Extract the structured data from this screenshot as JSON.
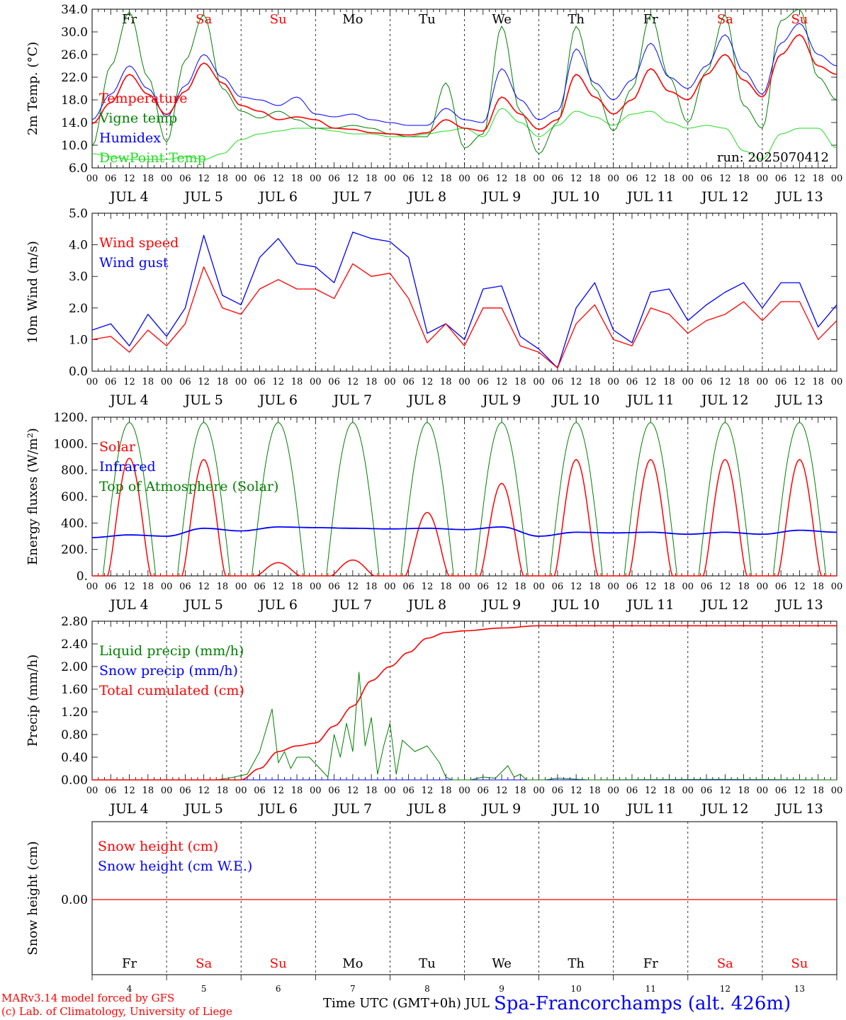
{
  "footer": {
    "credit_model": "MARv3.14 model forced by GFS",
    "credit_lab": "(c) Lab. of Climatology, University of Liege",
    "time_label": "Time UTC (GMT+0h) JUL",
    "station": "Spa-Francorchamps (alt. 426m)"
  },
  "colors": {
    "red": "#ff0000",
    "green": "#008000",
    "blue": "#0000ff",
    "lime": "#22dd22",
    "grid": "#000000"
  },
  "days": {
    "weekday_names": [
      "Fr",
      "Sa",
      "Su",
      "Mo",
      "Tu",
      "We",
      "Th",
      "Fr",
      "Sa",
      "Su"
    ],
    "weekend": [
      false,
      true,
      true,
      false,
      false,
      false,
      false,
      false,
      true,
      true
    ],
    "month_labels": [
      "JUL  4",
      "JUL  5",
      "JUL  6",
      "JUL  7",
      "JUL  8",
      "JUL  9",
      "JUL 10",
      "JUL 11",
      "JUL 12",
      "JUL 13"
    ],
    "day_numbers": [
      "4",
      "5",
      "6",
      "7",
      "8",
      "9",
      "10",
      "11",
      "12",
      "13"
    ],
    "hour_ticks": [
      "00",
      "06",
      "12",
      "18"
    ]
  },
  "chart_data": [
    {
      "type": "line",
      "ylabel": "2m Temp. (°C)",
      "ylim": [
        6.0,
        34.0
      ],
      "yticks": [
        "6.0",
        "10.0",
        "14.0",
        "18.0",
        "22.0",
        "26.0",
        "30.0",
        "34.0"
      ],
      "annotation": "run: 2025070412",
      "x_hours": [
        0,
        6,
        12,
        18,
        24,
        30,
        36,
        42,
        48,
        54,
        60,
        66,
        72,
        78,
        84,
        90,
        96,
        102,
        108,
        114,
        120,
        126,
        132,
        138,
        144,
        150,
        156,
        162,
        168,
        174,
        180,
        186,
        192,
        198,
        204,
        210,
        216,
        222,
        228,
        234,
        240
      ],
      "series": [
        {
          "name": "Temperature",
          "color": "#ff0000",
          "values": [
            13.8,
            17.5,
            22.5,
            19,
            15.4,
            19.5,
            24.5,
            21,
            17,
            16,
            14.5,
            15,
            14.5,
            13,
            12.8,
            12.2,
            12,
            11.8,
            12.2,
            14.5,
            13,
            12.5,
            18.5,
            15.5,
            12.8,
            14.5,
            22.5,
            18.5,
            15.5,
            18,
            23.5,
            19.5,
            18,
            22.5,
            26,
            21.5,
            18.5,
            26,
            29.5,
            24,
            22.5
          ]
        },
        {
          "name": "Vigne temp",
          "color": "#008000",
          "values": [
            9.8,
            24,
            33.5,
            22,
            10.5,
            25,
            33,
            20,
            16,
            14.8,
            16,
            14.5,
            13,
            13,
            13.5,
            13,
            12,
            11.5,
            11.5,
            21,
            9.5,
            12,
            31,
            16,
            8.5,
            14,
            31,
            20,
            12.5,
            20,
            33,
            22,
            14,
            23,
            33,
            17,
            13,
            32,
            34,
            22,
            18
          ]
        },
        {
          "name": "Humidex",
          "color": "#0000ff",
          "values": [
            14.5,
            19,
            24,
            20,
            15,
            20.5,
            26,
            22,
            18.5,
            18,
            17,
            18.5,
            15.5,
            15,
            15.5,
            14.5,
            14,
            13.5,
            13.5,
            16.5,
            14.5,
            14,
            23.5,
            18,
            14.5,
            16,
            27,
            21,
            18,
            21.5,
            28,
            22,
            20,
            24,
            29.5,
            23,
            19,
            28,
            31.5,
            26,
            24
          ]
        },
        {
          "name": "DewPoint Temp",
          "color": "#22dd22",
          "values": [
            8.5,
            8,
            7.5,
            7.5,
            7.5,
            8,
            7.5,
            8.5,
            11,
            12,
            12.5,
            13,
            13,
            12.5,
            12,
            12,
            11.5,
            11.5,
            12,
            12.5,
            13,
            11.5,
            16.5,
            14,
            11.5,
            13.5,
            16,
            15,
            13.5,
            15.5,
            16,
            14,
            13,
            13.5,
            13,
            9,
            7.5,
            12,
            13,
            13,
            9.5
          ]
        }
      ]
    },
    {
      "type": "line",
      "ylabel": "10m Wind (m/s)",
      "ylim": [
        0.0,
        5.0
      ],
      "yticks": [
        "0.0",
        "1.0",
        "2.0",
        "3.0",
        "4.0",
        "5.0"
      ],
      "x_hours": [
        0,
        6,
        12,
        18,
        24,
        30,
        36,
        42,
        48,
        54,
        60,
        66,
        72,
        78,
        84,
        90,
        96,
        102,
        108,
        114,
        120,
        126,
        132,
        138,
        144,
        150,
        156,
        162,
        168,
        174,
        180,
        186,
        192,
        198,
        204,
        210,
        216,
        222,
        228,
        234,
        240
      ],
      "series": [
        {
          "name": "Wind speed",
          "color": "#ff0000",
          "values": [
            1,
            1.1,
            0.6,
            1.3,
            0.8,
            1.5,
            3.3,
            2,
            1.8,
            2.6,
            2.9,
            2.6,
            2.6,
            2.3,
            3.4,
            3,
            3.1,
            2.3,
            0.9,
            1.5,
            0.8,
            2,
            2,
            0.8,
            0.6,
            0.1,
            1.5,
            2.1,
            1,
            0.8,
            2,
            1.8,
            1.2,
            1.6,
            1.8,
            2.2,
            1.6,
            2.2,
            2.2,
            1,
            1.6
          ]
        },
        {
          "name": "Wind gust",
          "color": "#0000ff",
          "values": [
            1.3,
            1.5,
            0.8,
            1.8,
            1.1,
            2,
            4.3,
            2.4,
            2.1,
            3.6,
            4.2,
            3.4,
            3.3,
            2.8,
            4.4,
            4.2,
            4.1,
            3.6,
            1.2,
            1.5,
            1,
            2.6,
            2.7,
            1.1,
            0.7,
            0.1,
            2,
            2.8,
            1.3,
            0.9,
            2.5,
            2.6,
            1.6,
            2.1,
            2.5,
            2.8,
            2,
            2.8,
            2.8,
            1.4,
            2.1
          ]
        }
      ]
    },
    {
      "type": "line",
      "ylabel": "Energy fluxes (W/m²)",
      "ylim": [
        0,
        1200
      ],
      "yticks": [
        "0.",
        "200.",
        "400.",
        "600.",
        "800.",
        "1000.",
        "1200."
      ],
      "series": [
        {
          "name": "Solar",
          "color": "#ff0000",
          "peaks": [
            890,
            880,
            100,
            120,
            480,
            700,
            880,
            880,
            880,
            880
          ]
        },
        {
          "name": "Infrared",
          "color": "#0000ff",
          "x_hours": [
            0,
            12,
            24,
            36,
            48,
            60,
            72,
            84,
            96,
            108,
            120,
            132,
            144,
            156,
            168,
            180,
            192,
            204,
            216,
            228,
            240
          ],
          "values": [
            290,
            310,
            300,
            360,
            340,
            370,
            365,
            360,
            355,
            360,
            350,
            370,
            300,
            330,
            325,
            330,
            315,
            330,
            315,
            345,
            330
          ]
        },
        {
          "name": "Top of Atmosphere (Solar)",
          "color": "#008000",
          "peak": 1160
        }
      ]
    },
    {
      "type": "line",
      "ylabel": "Precip (mm/h)",
      "ylim": [
        0.0,
        2.8
      ],
      "yticks": [
        "0.00",
        "0.40",
        "0.80",
        "1.20",
        "1.60",
        "2.00",
        "2.40",
        "2.80"
      ],
      "series": [
        {
          "name": "Liquid precip (mm/h)",
          "color": "#008000",
          "x_hours": [
            0,
            40,
            44,
            50,
            54,
            58,
            60,
            62,
            64,
            66,
            70,
            76,
            78,
            80,
            82,
            84,
            86,
            88,
            90,
            92,
            94,
            96,
            98,
            100,
            104,
            108,
            112,
            114,
            116,
            122,
            126,
            130,
            134,
            136,
            138,
            140,
            146,
            150,
            160,
            200,
            240
          ],
          "values": [
            0,
            0,
            0.03,
            0.1,
            0.5,
            1.25,
            0.3,
            0.5,
            0.2,
            0.4,
            0.4,
            0.05,
            0.8,
            0.4,
            1,
            0.5,
            1.9,
            0.6,
            1.1,
            0.1,
            0.6,
            1,
            0.1,
            0.7,
            0.5,
            0.6,
            0.3,
            0.05,
            0,
            0,
            0.05,
            0.03,
            0.25,
            0.05,
            0.1,
            0,
            0,
            0.03,
            0,
            0.01,
            0
          ]
        },
        {
          "name": "Snow precip (mm/h)",
          "color": "#0000ff",
          "x_hours": [
            0,
            240
          ],
          "values": [
            0,
            0
          ]
        },
        {
          "name": "Total cumulated (cm)",
          "color": "#ff0000",
          "x_hours": [
            0,
            48,
            54,
            60,
            66,
            72,
            78,
            84,
            90,
            96,
            102,
            108,
            114,
            120,
            132,
            144,
            240
          ],
          "values": [
            0,
            0,
            0.2,
            0.5,
            0.6,
            0.65,
            0.95,
            1.3,
            1.75,
            2.0,
            2.25,
            2.5,
            2.6,
            2.63,
            2.68,
            2.72,
            2.72
          ]
        }
      ]
    },
    {
      "type": "line",
      "ylabel": "Snow height (cm)",
      "yticks": [
        "0.00"
      ],
      "series": [
        {
          "name": "Snow height (cm)",
          "color": "#ff0000",
          "x_hours": [
            0,
            240
          ],
          "values": [
            0,
            0
          ]
        },
        {
          "name": "Snow height (cm W.E.)",
          "color": "#0000ff",
          "x_hours": [
            0,
            240
          ],
          "values": [
            0,
            0
          ]
        }
      ]
    }
  ]
}
